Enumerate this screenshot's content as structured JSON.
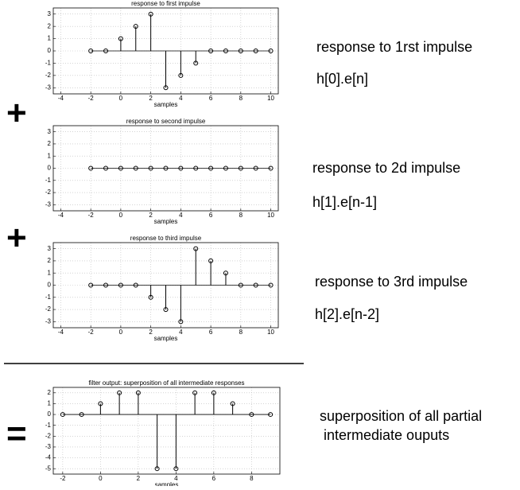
{
  "operators": [
    "+",
    "+",
    "="
  ],
  "chart_data": [
    {
      "type": "stem",
      "title": "response to first impulse",
      "xlabel": "samples",
      "color": "#000000",
      "grid": true,
      "x": [
        -2,
        -1,
        0,
        1,
        2,
        3,
        4,
        5,
        6,
        7,
        8,
        9,
        10
      ],
      "values": [
        0,
        0,
        1,
        2,
        3,
        -3,
        -2,
        -1,
        0,
        0,
        0,
        0,
        0
      ],
      "xlim": [
        -4.5,
        10.5
      ],
      "xticks": [
        -4,
        -2,
        0,
        2,
        4,
        6,
        8,
        10
      ],
      "ylim": [
        -3.5,
        3.5
      ],
      "yticks": [
        -3,
        -2,
        -1,
        0,
        1,
        2,
        3
      ],
      "annotations": [
        "response to 1rst impulse",
        "h[0].e[n]"
      ]
    },
    {
      "type": "stem",
      "title": "response to second impulse",
      "xlabel": "samples",
      "color": "#000000",
      "grid": true,
      "x": [
        -2,
        -1,
        0,
        1,
        2,
        3,
        4,
        5,
        6,
        7,
        8,
        9,
        10
      ],
      "values": [
        0,
        0,
        0,
        0,
        0,
        0,
        0,
        0,
        0,
        0,
        0,
        0,
        0
      ],
      "xlim": [
        -4.5,
        10.5
      ],
      "xticks": [
        -4,
        -2,
        0,
        2,
        4,
        6,
        8,
        10
      ],
      "ylim": [
        -3.5,
        3.5
      ],
      "yticks": [
        -3,
        -2,
        -1,
        0,
        1,
        2,
        3
      ],
      "annotations": [
        "response to 2d impulse",
        "h[1].e[n-1]"
      ]
    },
    {
      "type": "stem",
      "title": "response to third impulse",
      "xlabel": "samples",
      "color": "#000000",
      "grid": true,
      "x": [
        -2,
        -1,
        0,
        1,
        2,
        3,
        4,
        5,
        6,
        7,
        8,
        9,
        10
      ],
      "values": [
        0,
        0,
        0,
        0,
        -1,
        -2,
        -3,
        3,
        2,
        1,
        0,
        0,
        0
      ],
      "xlim": [
        -4.5,
        10.5
      ],
      "xticks": [
        -4,
        -2,
        0,
        2,
        4,
        6,
        8,
        10
      ],
      "ylim": [
        -3.5,
        3.5
      ],
      "yticks": [
        -3,
        -2,
        -1,
        0,
        1,
        2,
        3
      ],
      "annotations": [
        "response to 3rd impulse",
        "h[2].e[n-2]"
      ]
    },
    {
      "type": "stem",
      "title": "filter output: superposition of all intermediate responses",
      "xlabel": "samples",
      "color": "#000000",
      "grid": true,
      "x": [
        -2,
        -1,
        0,
        1,
        2,
        3,
        4,
        5,
        6,
        7,
        8,
        9
      ],
      "values": [
        0,
        0,
        1,
        2,
        2,
        -5,
        -5,
        2,
        2,
        1,
        0,
        0
      ],
      "xlim": [
        -2.5,
        9.5
      ],
      "xticks": [
        -2,
        0,
        2,
        4,
        6,
        8
      ],
      "ylim": [
        -5.5,
        2.5
      ],
      "yticks": [
        -5,
        -4,
        -3,
        -2,
        -1,
        0,
        1,
        2
      ],
      "annotations": [
        "superposition of all partial",
        " intermediate ouputs"
      ]
    }
  ]
}
